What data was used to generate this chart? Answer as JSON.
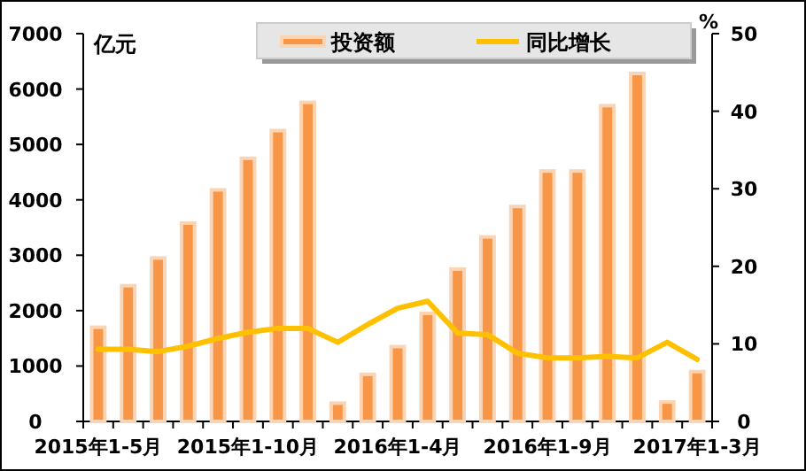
{
  "chart_data": {
    "type": "bar",
    "categories": [
      "2015年1-5月",
      null,
      null,
      null,
      null,
      "2015年1-10月",
      null,
      null,
      null,
      null,
      "2016年1-4月",
      null,
      null,
      null,
      null,
      "2016年1-9月",
      null,
      null,
      null,
      null,
      "2017年1-3月"
    ],
    "series": [
      {
        "name": "投资额",
        "color": "#f79646",
        "values": [
          1700,
          2450,
          2950,
          3580,
          4180,
          4750,
          5250,
          5760,
          330,
          850,
          1350,
          1950,
          2750,
          3330,
          3880,
          4520,
          4520,
          5700,
          6280,
          350,
          900
        ]
      },
      {
        "name": "同比增长",
        "type": "line",
        "axis": "y2",
        "color": "#ffc000",
        "values": [
          9.3,
          9.3,
          9.0,
          9.7,
          10.7,
          11.5,
          12.0,
          12.0,
          10.2,
          12.5,
          14.6,
          15.5,
          11.4,
          11.2,
          8.8,
          8.2,
          8.2,
          8.4,
          8.2,
          10.2,
          8.0
        ]
      }
    ],
    "ylabel": "亿元",
    "y2label": "%",
    "ylim": [
      0,
      7000
    ],
    "yticks": [
      0,
      1000,
      2000,
      3000,
      4000,
      5000,
      6000,
      7000
    ],
    "y2lim": [
      0,
      50
    ],
    "y2ticks": [
      0,
      10,
      20,
      30,
      40,
      50
    ],
    "legend": "top",
    "grid": false
  }
}
